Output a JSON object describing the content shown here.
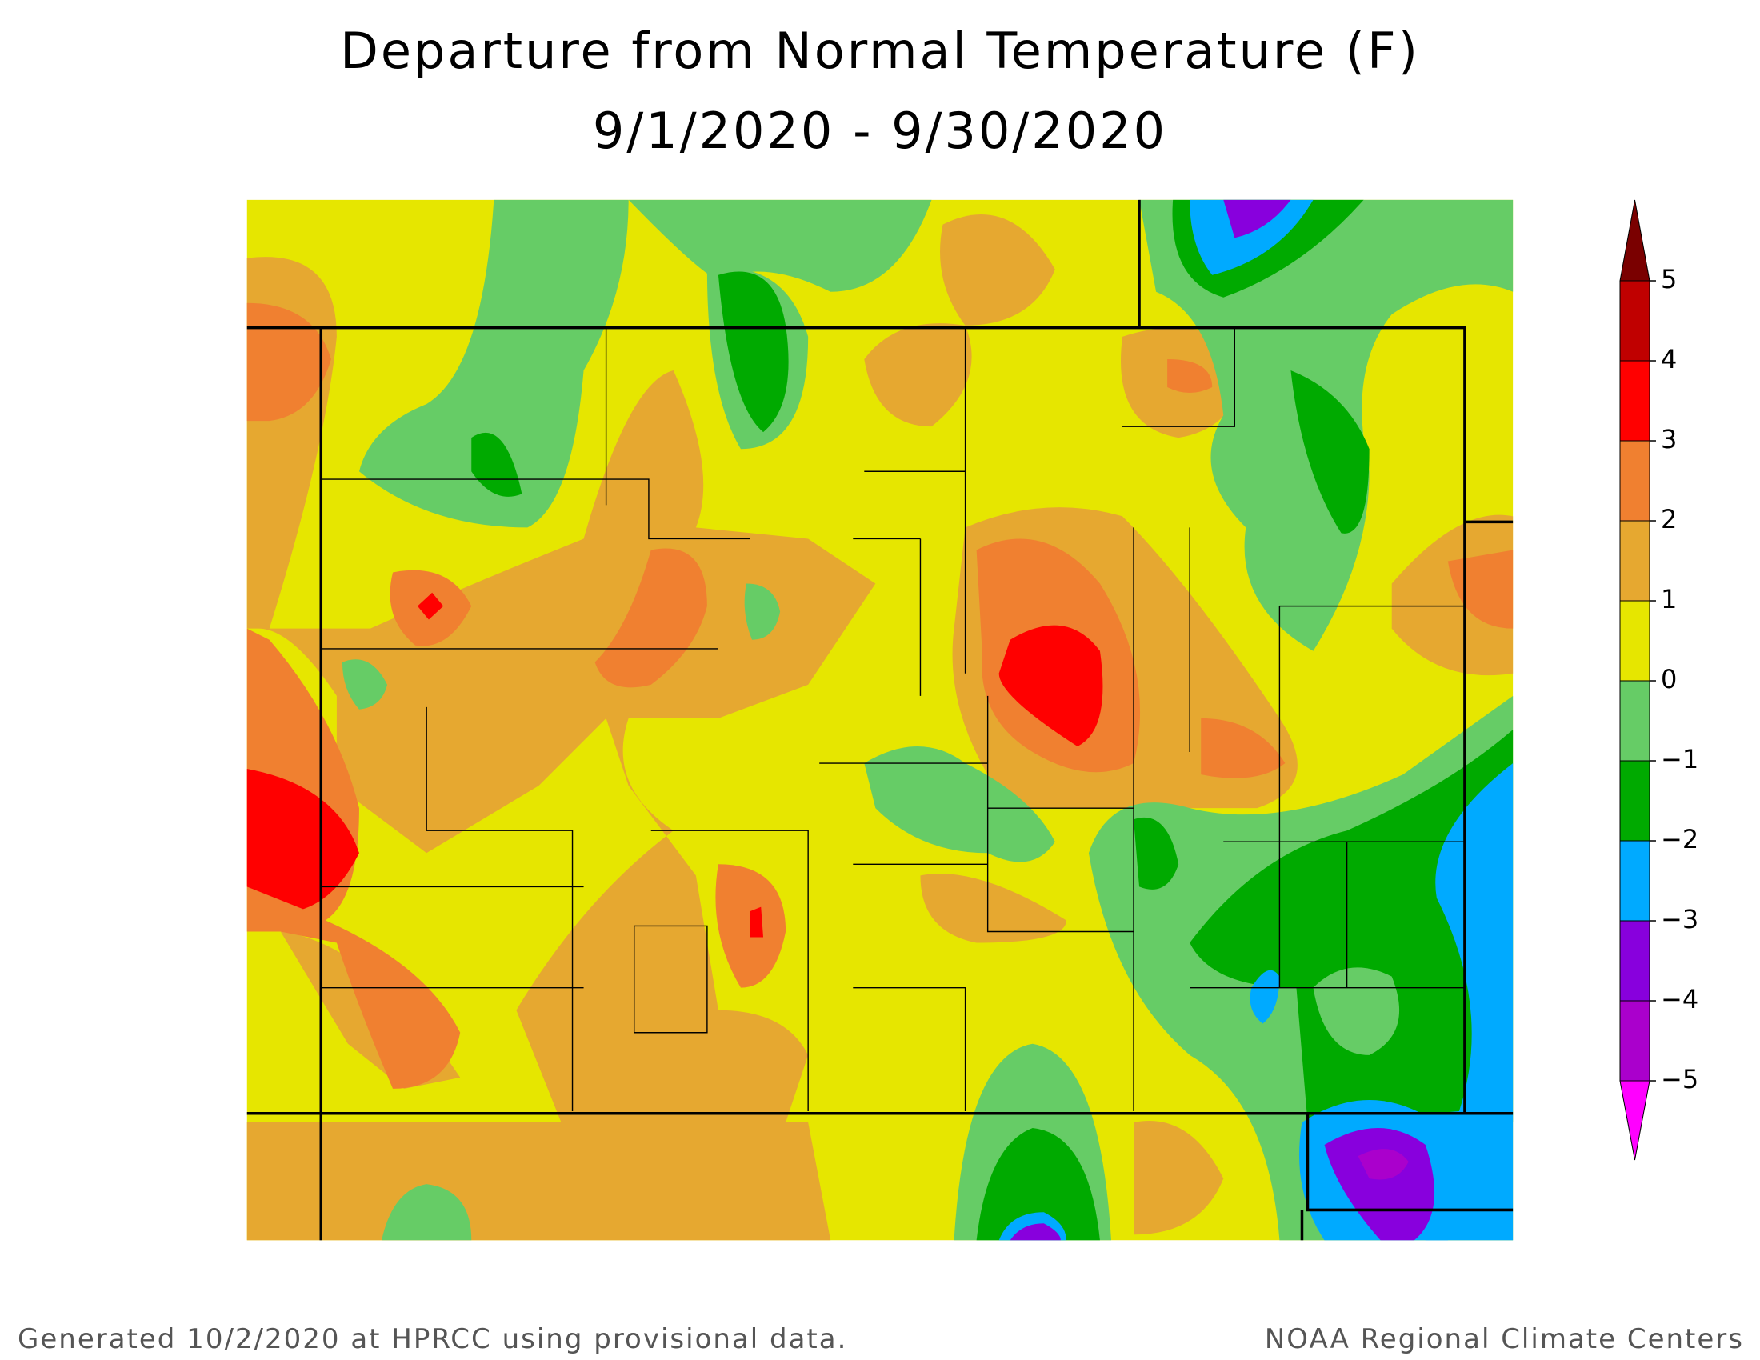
{
  "header": {
    "title": "Departure from Normal Temperature (F)",
    "subtitle": "9/1/2020 - 9/30/2020"
  },
  "legend": {
    "ticks": [
      5,
      4,
      3,
      2,
      1,
      0,
      {
        "value": -1,
        "label": "−1"
      },
      {
        "value": -2,
        "label": "−2"
      },
      {
        "value": -3,
        "label": "−3"
      },
      {
        "value": -4,
        "label": "−4"
      },
      {
        "value": -5,
        "label": "−5"
      }
    ],
    "band_colors": [
      "#c00000",
      "#ff0000",
      "#f08030",
      "#e6a830",
      "#e6e600",
      "#66cc66",
      "#00aa00",
      "#00aaff",
      "#8800dd",
      "#aa00cc"
    ],
    "top_color": "#7a0000",
    "bottom_color": "#ff00ff"
  },
  "footer": {
    "left": "Generated 10/2/2020 at HPRCC using provisional data.",
    "right": "NOAA Regional Climate Centers"
  }
}
